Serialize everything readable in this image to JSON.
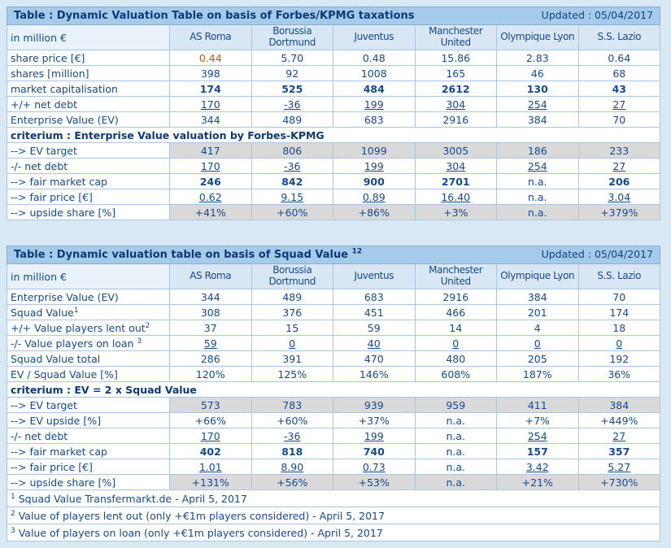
{
  "page_background": "#d9e8f5",
  "colors": {
    "title_bar_bg": "#a6cbea",
    "header_bg": "#d9e6f4",
    "unit_header_bg": "#e9f1f9",
    "grey_cell_bg": "#d9d9d9",
    "text_blue": "#164a8f",
    "title_navy": "#0c3a76",
    "border_blue": "#a9c7e2",
    "accent_orange": "#c55a11"
  },
  "chart_data": [
    {
      "type": "table",
      "title": "Table : Dynamic Valuation Table on basis of Forbes/KPMG taxations",
      "title_sup": "",
      "updated": "Updated : 05/04/2017",
      "unit_label": "in million €",
      "columns": [
        "AS Roma",
        "Borussia Dortmund",
        "Juventus",
        "Manchester United",
        "Olympique Lyon",
        "S.S. Lazio"
      ],
      "rows": [
        {
          "label": "share price [€]",
          "sup": "",
          "style": "normal",
          "first_value_color": "#c55a11",
          "values": [
            "0.44",
            "5.70",
            "0.48",
            "15.86",
            "2.83",
            "0.64"
          ]
        },
        {
          "label": "shares [million]",
          "sup": "",
          "style": "normal",
          "values": [
            "398",
            "92",
            "1008",
            "165",
            "46",
            "68"
          ]
        },
        {
          "label": "market capitalisation",
          "sup": "",
          "style": "bold",
          "values": [
            "174",
            "525",
            "484",
            "2612",
            "130",
            "43"
          ]
        },
        {
          "label": "+/+ net debt",
          "sup": "",
          "style": "underline",
          "values": [
            "170",
            "-36",
            "199",
            "304",
            "254",
            "27"
          ]
        },
        {
          "label": "Enterprise Value (EV)",
          "sup": "",
          "style": "normal",
          "values": [
            "344",
            "489",
            "683",
            "2916",
            "384",
            "70"
          ]
        },
        {
          "label": "criterium : Enterprise Value valuation by Forbes-KPMG",
          "sup": "",
          "style": "section",
          "values": []
        },
        {
          "label": "--> EV target",
          "sup": "",
          "style": "grey",
          "values": [
            "417",
            "806",
            "1099",
            "3005",
            "186",
            "233"
          ]
        },
        {
          "label": "-/- net debt",
          "sup": "",
          "style": "underline",
          "values": [
            "170",
            "-36",
            "199",
            "304",
            "254",
            "27"
          ]
        },
        {
          "label": "--> fair market cap",
          "sup": "",
          "style": "bold",
          "values": [
            "246",
            "842",
            "900",
            "2701",
            "n.a.",
            "206"
          ]
        },
        {
          "label": "--> fair price [€]",
          "sup": "",
          "style": "underline",
          "values": [
            "0.62",
            "9.15",
            "0.89",
            "16.40",
            "n.a.",
            "3.04"
          ]
        },
        {
          "label": "--> upside share [%]",
          "sup": "",
          "style": "grey",
          "values": [
            "+41%",
            "+60%",
            "+86%",
            "+3%",
            "n.a.",
            "+379%"
          ]
        }
      ],
      "footnotes": []
    },
    {
      "type": "table",
      "title": "Table : Dynamic valuation table on basis of Squad Value",
      "title_sup": "12",
      "updated": "Updated : 05/04/2017",
      "unit_label": "in million €",
      "columns": [
        "AS Roma",
        "Borussia Dortmund",
        "Juventus",
        "Manchester United",
        "Olympique Lyon",
        "S.S. Lazio"
      ],
      "rows": [
        {
          "label": "Enterprise Value (EV)",
          "sup": "",
          "style": "normal",
          "values": [
            "344",
            "489",
            "683",
            "2916",
            "384",
            "70"
          ]
        },
        {
          "label": "Squad Value",
          "sup": "1",
          "style": "normal",
          "values": [
            "308",
            "376",
            "451",
            "466",
            "201",
            "174"
          ]
        },
        {
          "label": "+/+ Value players lent out",
          "sup": "2",
          "style": "normal",
          "values": [
            "37",
            "15",
            "59",
            "14",
            "4",
            "18"
          ]
        },
        {
          "label": "-/- Value players on loan ",
          "sup": "3",
          "style": "underline",
          "values": [
            "59",
            "0",
            "40",
            "0",
            "0",
            "0"
          ]
        },
        {
          "label": "Squad Value total",
          "sup": "",
          "style": "normal",
          "values": [
            "286",
            "391",
            "470",
            "480",
            "205",
            "192"
          ]
        },
        {
          "label": "EV / Squad Value [%]",
          "sup": "",
          "style": "normal",
          "values": [
            "120%",
            "125%",
            "146%",
            "608%",
            "187%",
            "36%"
          ]
        },
        {
          "label": "criterium : EV = 2 x Squad Value",
          "sup": "",
          "style": "section",
          "values": []
        },
        {
          "label": "--> EV target",
          "sup": "",
          "style": "grey",
          "values": [
            "573",
            "783",
            "939",
            "959",
            "411",
            "384"
          ]
        },
        {
          "label": "--> EV upside [%]",
          "sup": "",
          "style": "normal",
          "values": [
            "+66%",
            "+60%",
            "+37%",
            "n.a.",
            "+7%",
            "+449%"
          ]
        },
        {
          "label": "-/- net debt",
          "sup": "",
          "style": "underline",
          "values": [
            "170",
            "-36",
            "199",
            "n.a.",
            "254",
            "27"
          ]
        },
        {
          "label": "--> fair market cap",
          "sup": "",
          "style": "bold",
          "values": [
            "402",
            "818",
            "740",
            "n.a.",
            "157",
            "357"
          ]
        },
        {
          "label": "--> fair price [€]",
          "sup": "",
          "style": "underline",
          "values": [
            "1.01",
            "8.90",
            "0.73",
            "n.a.",
            "3.42",
            "5.27"
          ]
        },
        {
          "label": "--> upside share [%]",
          "sup": "",
          "style": "grey",
          "values": [
            "+131%",
            "+56%",
            "+53%",
            "n.a.",
            "+21%",
            "+730%"
          ]
        }
      ],
      "footnotes": [
        {
          "sup": "1",
          "text": "Squad Value Transfermarkt.de - April 5, 2017"
        },
        {
          "sup": "2",
          "text": "Value of players lent out (only +€1m players considered) - April 5, 2017"
        },
        {
          "sup": "3",
          "text": "Value of players on loan (only +€1m players considered) - April 5, 2017"
        }
      ]
    }
  ]
}
